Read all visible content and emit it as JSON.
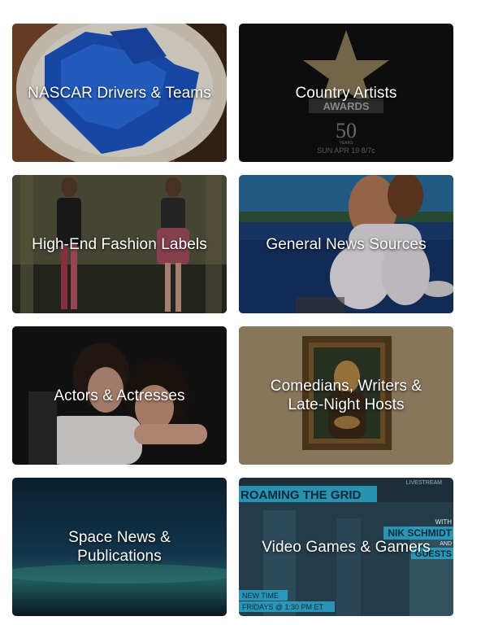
{
  "tiles": [
    {
      "label": "NASCAR Drivers & Teams",
      "image": "blue-gelatin-plate"
    },
    {
      "label": "Country Artists",
      "image": "awards-show-logo",
      "image_text": {
        "title": "AWARDS",
        "years": "50",
        "years_word": "YEARS",
        "date": "SUN APR 19 8/7c"
      }
    },
    {
      "label": "High-End Fashion Labels",
      "image": "runway-models"
    },
    {
      "label": "General News Sources",
      "image": "woman-by-lake"
    },
    {
      "label": "Actors & Actresses",
      "image": "celebrities-hugging"
    },
    {
      "label": "Comedians, Writers & Late-Night Hosts",
      "image": "framed-painting"
    },
    {
      "label": "Space News & Publications",
      "image": "night-sky-horizon"
    },
    {
      "label": "Video Games & Gamers",
      "image": "game-show-screen",
      "image_text": {
        "top": "ROAMING THE GRID",
        "live": "LIVESTREAM",
        "with": "WITH",
        "name": "NIK SCHMIDT",
        "and": "AND",
        "guests": "GUESTS",
        "new_time": "NEW TIME",
        "schedule": "FRIDAYS @ 1:30 PM ET"
      }
    }
  ]
}
